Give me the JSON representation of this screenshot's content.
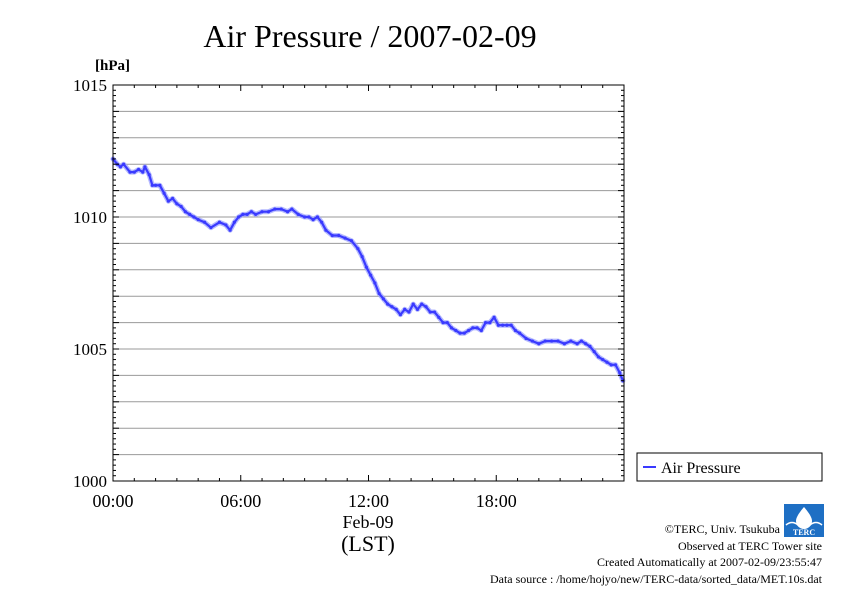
{
  "chart_data": {
    "type": "line",
    "title": "Air Pressure / 2007-02-09",
    "unit_label": "[hPa]",
    "ylim": [
      1000,
      1015
    ],
    "y_ticks": [
      "1000",
      "1005",
      "1010",
      "1015"
    ],
    "y_tick_values": [
      1000,
      1005,
      1010,
      1015
    ],
    "y_gridlines": [
      1001,
      1002,
      1003,
      1004,
      1005,
      1006,
      1007,
      1008,
      1009,
      1010,
      1011,
      1012,
      1013,
      1014
    ],
    "xlim": [
      0,
      24
    ],
    "x_ticks": [
      "00:00",
      "06:00",
      "12:00",
      "18:00"
    ],
    "x_tick_hours": [
      0,
      6,
      12,
      18
    ],
    "date_label": "Feb-09",
    "xlabel": "(LST)",
    "grid": "horizontal",
    "legend_position": "right, outside plot near bottom",
    "series": [
      {
        "name": "Air Pressure",
        "color": "#3a3aff",
        "x": [
          0.0,
          0.2,
          0.35,
          0.5,
          0.8,
          1.0,
          1.2,
          1.4,
          1.5,
          1.7,
          1.85,
          2.0,
          2.2,
          2.4,
          2.6,
          2.8,
          3.0,
          3.2,
          3.4,
          3.6,
          3.8,
          4.0,
          4.3,
          4.6,
          5.0,
          5.3,
          5.5,
          5.7,
          5.9,
          6.1,
          6.3,
          6.5,
          6.7,
          7.0,
          7.3,
          7.6,
          7.9,
          8.2,
          8.4,
          8.7,
          9.0,
          9.2,
          9.4,
          9.6,
          9.8,
          10.0,
          10.3,
          10.6,
          10.9,
          11.2,
          11.5,
          11.7,
          11.9,
          12.1,
          12.3,
          12.5,
          12.7,
          12.9,
          13.1,
          13.3,
          13.5,
          13.7,
          13.9,
          14.1,
          14.3,
          14.5,
          14.7,
          14.9,
          15.1,
          15.3,
          15.5,
          15.7,
          15.9,
          16.1,
          16.3,
          16.5,
          16.7,
          16.9,
          17.1,
          17.3,
          17.5,
          17.7,
          17.9,
          18.1,
          18.3,
          18.5,
          18.7,
          18.9,
          19.1,
          19.4,
          19.7,
          20.0,
          20.3,
          20.6,
          20.9,
          21.2,
          21.5,
          21.8,
          22.0,
          22.2,
          22.4,
          22.6,
          22.8,
          23.0,
          23.2,
          23.4,
          23.6,
          23.8,
          23.95
        ],
        "values": [
          1012.2,
          1012.0,
          1011.9,
          1012.0,
          1011.7,
          1011.7,
          1011.8,
          1011.7,
          1011.9,
          1011.6,
          1011.2,
          1011.2,
          1011.2,
          1010.9,
          1010.6,
          1010.7,
          1010.5,
          1010.4,
          1010.2,
          1010.1,
          1010.0,
          1009.9,
          1009.8,
          1009.6,
          1009.8,
          1009.7,
          1009.5,
          1009.8,
          1010.0,
          1010.1,
          1010.1,
          1010.2,
          1010.1,
          1010.2,
          1010.2,
          1010.3,
          1010.3,
          1010.2,
          1010.3,
          1010.1,
          1010.0,
          1010.0,
          1009.9,
          1010.0,
          1009.8,
          1009.5,
          1009.3,
          1009.3,
          1009.2,
          1009.1,
          1008.8,
          1008.5,
          1008.1,
          1007.8,
          1007.5,
          1007.1,
          1006.9,
          1006.7,
          1006.6,
          1006.5,
          1006.3,
          1006.5,
          1006.4,
          1006.7,
          1006.5,
          1006.7,
          1006.6,
          1006.4,
          1006.4,
          1006.2,
          1006.0,
          1006.0,
          1005.8,
          1005.7,
          1005.6,
          1005.6,
          1005.7,
          1005.8,
          1005.8,
          1005.7,
          1006.0,
          1006.0,
          1006.2,
          1005.9,
          1005.9,
          1005.9,
          1005.9,
          1005.7,
          1005.6,
          1005.4,
          1005.3,
          1005.2,
          1005.3,
          1005.3,
          1005.3,
          1005.2,
          1005.3,
          1005.2,
          1005.3,
          1005.2,
          1005.1,
          1004.9,
          1004.7,
          1004.6,
          1004.5,
          1004.4,
          1004.4,
          1004.1,
          1003.8
        ]
      }
    ]
  },
  "footer": {
    "copyright": "©TERC, Univ. Tsukuba",
    "observed": "Observed at TERC Tower site",
    "created": "Created Automatically at 2007-02-09/23:55:47",
    "source": "Data source : /home/hojyo/new/TERC-data/sorted_data/MET.10s.dat"
  },
  "logo": {
    "text": "TERC",
    "color": "#1e6fc4"
  }
}
